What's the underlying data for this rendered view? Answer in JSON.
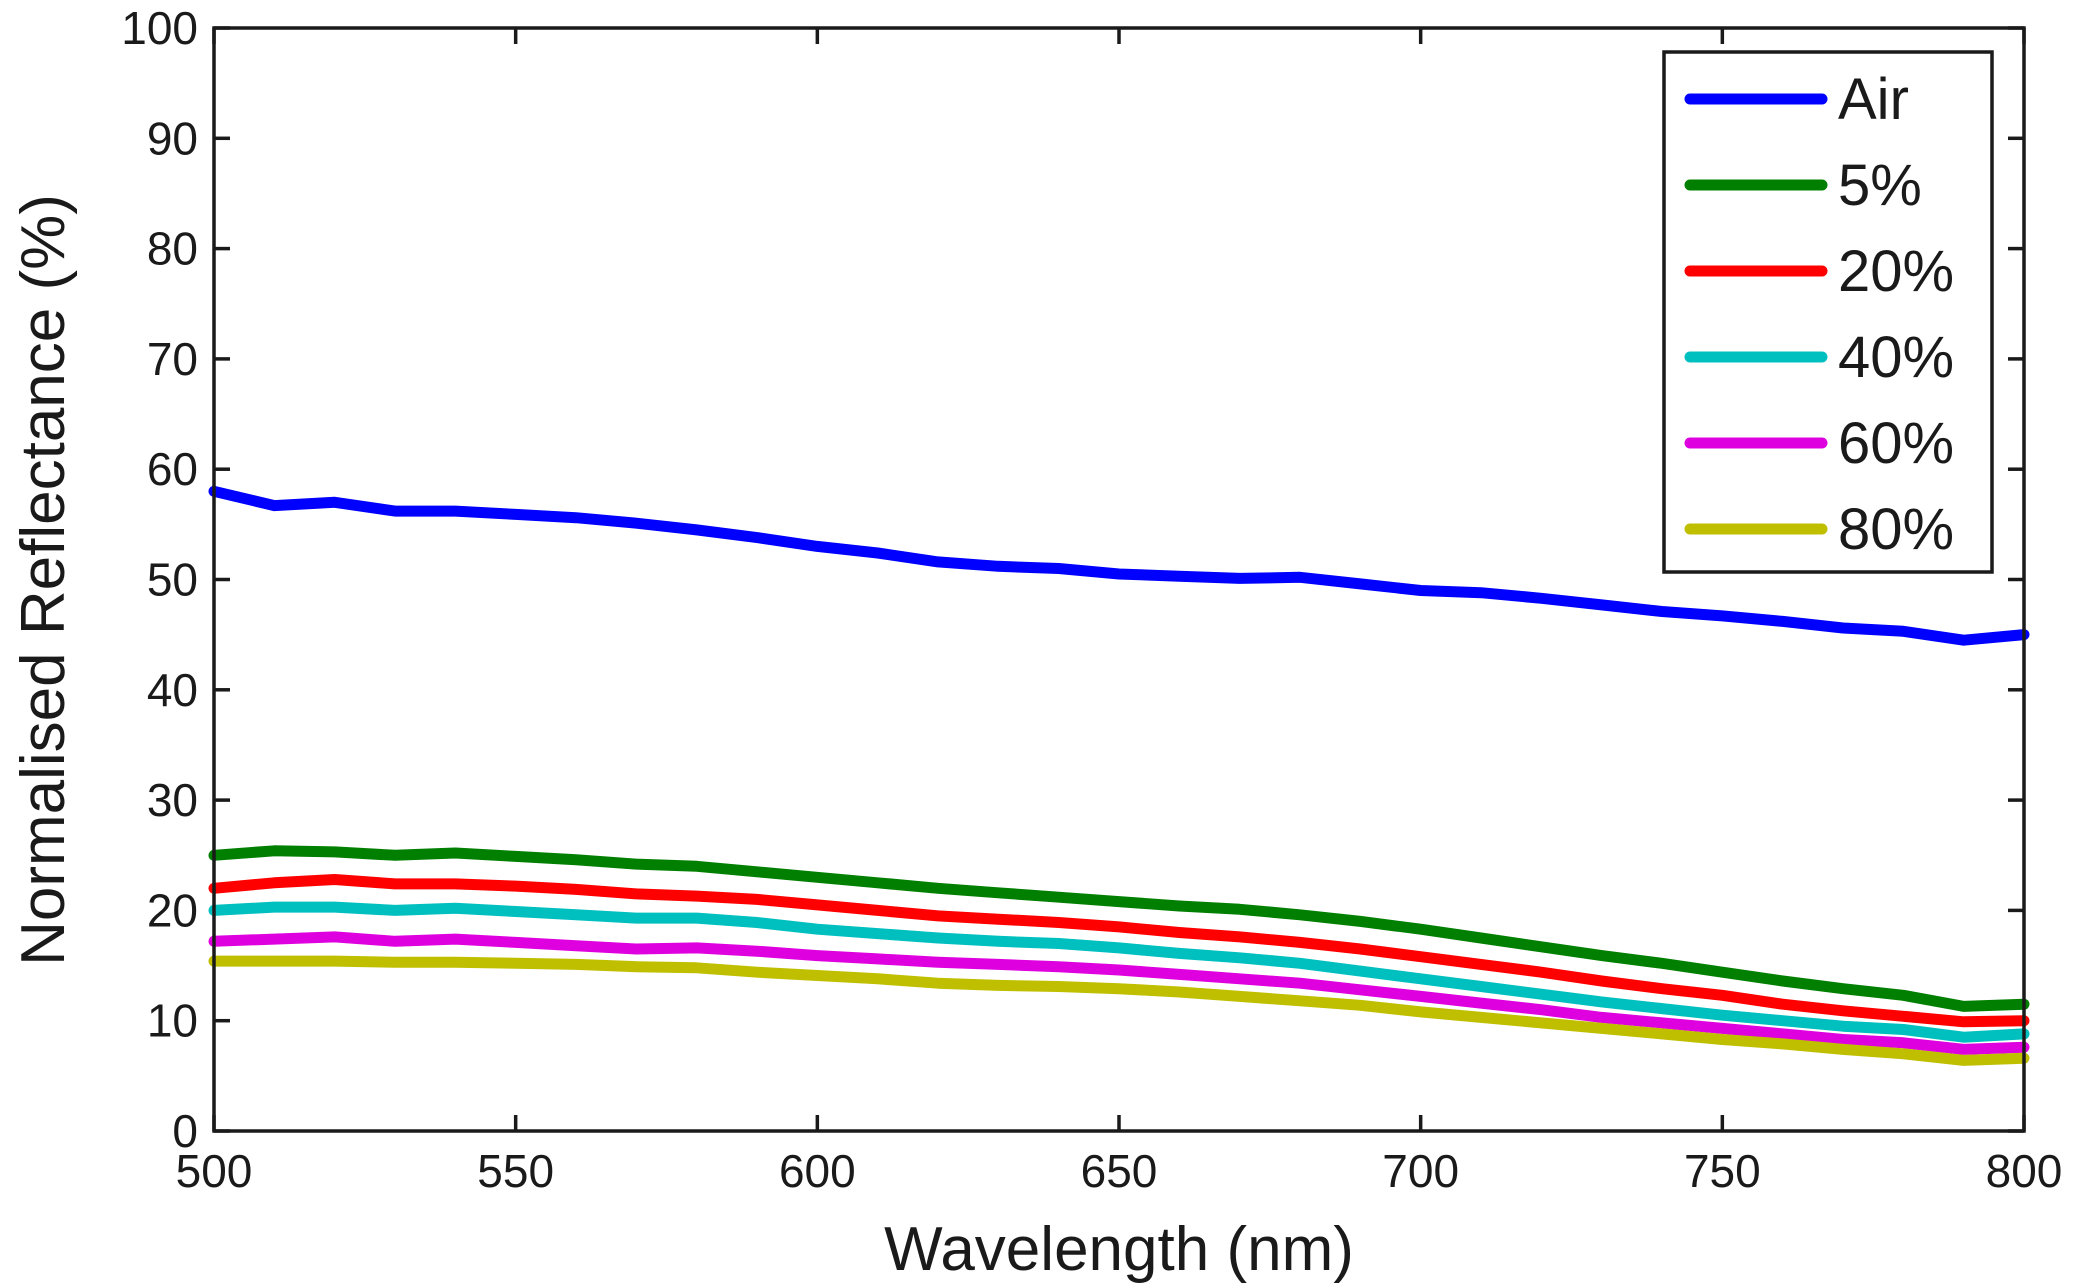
{
  "chart_data": {
    "type": "line",
    "title": "",
    "xlabel": "Wavelength (nm)",
    "ylabel": "Normalised Reflectance (%)",
    "xlim": [
      500,
      800
    ],
    "ylim": [
      0,
      100
    ],
    "xticks": [
      "500",
      "550",
      "600",
      "650",
      "700",
      "750",
      "800"
    ],
    "yticks": [
      "0",
      "10",
      "20",
      "30",
      "40",
      "50",
      "60",
      "70",
      "80",
      "90",
      "100"
    ],
    "grid": false,
    "legend_position": "top-right",
    "x": [
      500,
      510,
      520,
      530,
      540,
      550,
      560,
      570,
      580,
      590,
      600,
      610,
      620,
      630,
      640,
      650,
      660,
      670,
      680,
      690,
      700,
      710,
      720,
      730,
      740,
      750,
      760,
      770,
      780,
      790,
      800
    ],
    "series": [
      {
        "name": "Air",
        "color": "#0000ff",
        "values": [
          58,
          56.7,
          57,
          56.2,
          56.2,
          55.9,
          55.6,
          55.1,
          54.5,
          53.8,
          53,
          52.4,
          51.6,
          51.2,
          51,
          50.5,
          50.3,
          50.1,
          50.2,
          49.6,
          49,
          48.8,
          48.3,
          47.7,
          47.1,
          46.7,
          46.2,
          45.6,
          45.3,
          44.5,
          45
        ]
      },
      {
        "name": "5%",
        "color": "#007f00",
        "values": [
          25,
          25.4,
          25.3,
          25,
          25.2,
          24.9,
          24.6,
          24.2,
          24,
          23.5,
          23,
          22.5,
          22,
          21.6,
          21.2,
          20.8,
          20.4,
          20.1,
          19.6,
          19,
          18.3,
          17.5,
          16.7,
          15.9,
          15.2,
          14.4,
          13.6,
          12.9,
          12.3,
          11.3,
          11.5
        ]
      },
      {
        "name": "20%",
        "color": "#ff0000",
        "values": [
          22,
          22.5,
          22.8,
          22.4,
          22.4,
          22.2,
          21.9,
          21.5,
          21.3,
          21,
          20.5,
          20,
          19.5,
          19.2,
          18.9,
          18.5,
          18,
          17.6,
          17.1,
          16.5,
          15.8,
          15.1,
          14.4,
          13.6,
          12.9,
          12.3,
          11.5,
          10.9,
          10.4,
          9.9,
          10
        ]
      },
      {
        "name": "40%",
        "color": "#00bfbf",
        "values": [
          20,
          20.3,
          20.3,
          20,
          20.2,
          19.9,
          19.6,
          19.3,
          19.3,
          18.9,
          18.3,
          17.9,
          17.5,
          17.2,
          17,
          16.6,
          16.1,
          15.7,
          15.2,
          14.5,
          13.8,
          13.1,
          12.4,
          11.7,
          11.1,
          10.5,
          10,
          9.5,
          9.2,
          8.5,
          8.8
        ]
      },
      {
        "name": "60%",
        "color": "#df00df",
        "values": [
          17.2,
          17.4,
          17.6,
          17.2,
          17.4,
          17.1,
          16.8,
          16.5,
          16.6,
          16.3,
          15.9,
          15.6,
          15.3,
          15.1,
          14.9,
          14.6,
          14.2,
          13.8,
          13.4,
          12.8,
          12.2,
          11.6,
          11,
          10.3,
          9.8,
          9.3,
          8.8,
          8.3,
          8,
          7.4,
          7.6
        ]
      },
      {
        "name": "80%",
        "color": "#bfbf00",
        "values": [
          15.4,
          15.4,
          15.4,
          15.3,
          15.3,
          15.2,
          15.1,
          14.9,
          14.8,
          14.4,
          14.1,
          13.8,
          13.4,
          13.2,
          13.1,
          12.9,
          12.6,
          12.2,
          11.8,
          11.4,
          10.8,
          10.3,
          9.8,
          9.3,
          8.8,
          8.3,
          7.9,
          7.4,
          7,
          6.4,
          6.6
        ]
      }
    ]
  }
}
